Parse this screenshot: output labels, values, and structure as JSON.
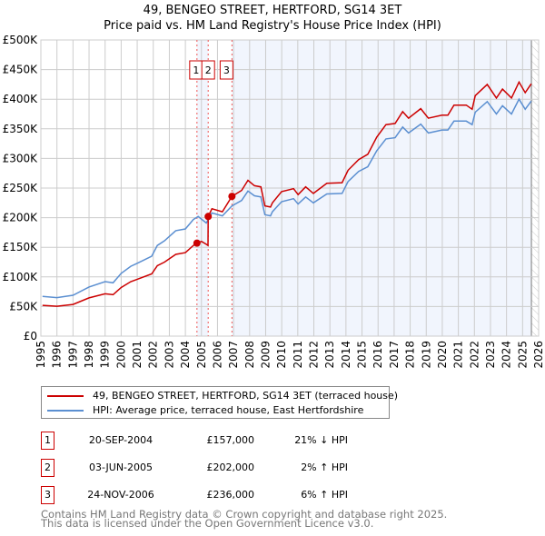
{
  "chart_data": {
    "type": "line",
    "title": "49, BENGEO STREET, HERTFORD, SG14 3ET",
    "subtitle": "Price paid vs. HM Land Registry's House Price Index (HPI)",
    "xlim": [
      1995,
      2026
    ],
    "ylim": [
      0,
      500000
    ],
    "x_ticks": [
      "1995",
      "1996",
      "1997",
      "1998",
      "1999",
      "2000",
      "2001",
      "2002",
      "2003",
      "2004",
      "2005",
      "2006",
      "2007",
      "2008",
      "2009",
      "2010",
      "2011",
      "2012",
      "2013",
      "2014",
      "2015",
      "2016",
      "2017",
      "2018",
      "2019",
      "2020",
      "2021",
      "2022",
      "2023",
      "2024",
      "2025",
      "2026"
    ],
    "y_ticks": [
      {
        "v": 0,
        "label": "£0"
      },
      {
        "v": 50000,
        "label": "£50K"
      },
      {
        "v": 100000,
        "label": "£100K"
      },
      {
        "v": 150000,
        "label": "£150K"
      },
      {
        "v": 200000,
        "label": "£200K"
      },
      {
        "v": 250000,
        "label": "£250K"
      },
      {
        "v": 300000,
        "label": "£300K"
      },
      {
        "v": 350000,
        "label": "£350K"
      },
      {
        "v": 400000,
        "label": "£400K"
      },
      {
        "v": 450000,
        "label": "£450K"
      },
      {
        "v": 500000,
        "label": "£500K"
      }
    ],
    "grid": true,
    "series": [
      {
        "name": "49, BENGEO STREET, HERTFORD, SG14 3ET (terraced house)",
        "color": "#cc0000",
        "x": [
          1995.1,
          1996.0,
          1997.0,
          1998.0,
          1999.0,
          1999.5,
          2000.0,
          2000.6,
          2001.0,
          2001.9,
          2002.25,
          2002.7,
          2003.4,
          2004.0,
          2004.5,
          2004.72,
          2005.0,
          2005.3,
          2005.41,
          2005.42,
          2005.65,
          2006.3,
          2006.9,
          2007.5,
          2007.9,
          2008.3,
          2008.7,
          2008.95,
          2009.3,
          2009.42,
          2009.99,
          2010.74,
          2011.02,
          2011.49,
          2011.97,
          2012.81,
          2013.76,
          2014.13,
          2014.79,
          2015.36,
          2015.92,
          2016.49,
          2017.06,
          2017.53,
          2017.9,
          2018.66,
          2019.13,
          2019.98,
          2020.35,
          2020.73,
          2021.49,
          2021.86,
          2022.05,
          2022.8,
          2023.37,
          2023.75,
          2024.31,
          2024.78,
          2025.16,
          2025.54
        ],
        "y": [
          52000,
          50500,
          53600,
          64500,
          71500,
          70000,
          82000,
          92000,
          96000,
          105000,
          119000,
          125000,
          138000,
          141000,
          153000,
          157000,
          160000,
          155000,
          153000,
          202000,
          215000,
          210000,
          236000,
          246000,
          263000,
          254000,
          252000,
          220000,
          218000,
          225000,
          244000,
          249000,
          239000,
          252000,
          241000,
          258000,
          259000,
          280000,
          298000,
          307000,
          336000,
          357000,
          359000,
          379000,
          368000,
          384000,
          368000,
          373000,
          373000,
          390000,
          390000,
          383000,
          406000,
          425000,
          402000,
          417000,
          402000,
          429000,
          411000,
          426000
        ]
      },
      {
        "name": "HPI: Average price, terraced house, East Hertfordshire",
        "color": "#5b8fd1",
        "x": [
          1995.1,
          1996.0,
          1997.0,
          1998.0,
          1999.0,
          1999.5,
          2000.0,
          2000.6,
          2001.0,
          2001.9,
          2002.25,
          2002.7,
          2003.4,
          2004.0,
          2004.5,
          2004.8,
          2005.3,
          2005.65,
          2006.3,
          2006.9,
          2007.5,
          2007.9,
          2008.3,
          2008.7,
          2008.95,
          2009.3,
          2009.42,
          2009.99,
          2010.74,
          2011.02,
          2011.49,
          2011.97,
          2012.81,
          2013.76,
          2014.13,
          2014.79,
          2015.36,
          2015.92,
          2016.49,
          2017.06,
          2017.53,
          2017.9,
          2018.66,
          2019.13,
          2019.98,
          2020.35,
          2020.73,
          2021.49,
          2021.86,
          2022.05,
          2022.8,
          2023.37,
          2023.75,
          2024.31,
          2024.78,
          2025.16,
          2025.54
        ],
        "y": [
          67000,
          65000,
          69000,
          83000,
          92000,
          90000,
          106000,
          118000,
          123000,
          135000,
          153000,
          161000,
          178000,
          181000,
          197000,
          202000,
          191000,
          208000,
          203000,
          220000,
          229000,
          245000,
          237000,
          235000,
          205000,
          203000,
          210000,
          227000,
          232000,
          223000,
          235000,
          225000,
          240000,
          241000,
          261000,
          278000,
          286000,
          313000,
          333000,
          335000,
          353000,
          343000,
          358000,
          343000,
          348000,
          348000,
          363000,
          363000,
          357000,
          378000,
          396000,
          375000,
          389000,
          375000,
          400000,
          383000,
          397000
        ]
      }
    ],
    "sales": [
      {
        "label": "1",
        "x": 2004.72,
        "y": 157000
      },
      {
        "label": "2",
        "x": 2005.42,
        "y": 202000
      },
      {
        "label": "3",
        "x": 2006.9,
        "y": 236000
      }
    ],
    "shaded_ranges": [
      [
        2004.72,
        2005.42
      ],
      [
        2006.9,
        2026
      ]
    ],
    "hatched_from": 2025.55,
    "legend_placement": "below"
  },
  "legend": [
    {
      "label": "49, BENGEO STREET, HERTFORD, SG14 3ET (terraced house)",
      "color": "#cc0000"
    },
    {
      "label": "HPI: Average price, terraced house, East Hertfordshire",
      "color": "#5b8fd1"
    }
  ],
  "transactions": [
    {
      "num": "1",
      "date": "20-SEP-2004",
      "price": "£157,000",
      "hpi": "21% ↓ HPI"
    },
    {
      "num": "2",
      "date": "03-JUN-2005",
      "price": "£202,000",
      "hpi": "2% ↑ HPI"
    },
    {
      "num": "3",
      "date": "24-NOV-2006",
      "price": "£236,000",
      "hpi": "6% ↑ HPI"
    }
  ],
  "footer": [
    "Contains HM Land Registry data © Crown copyright and database right 2025.",
    "This data is licensed under the Open Government Licence v3.0."
  ]
}
